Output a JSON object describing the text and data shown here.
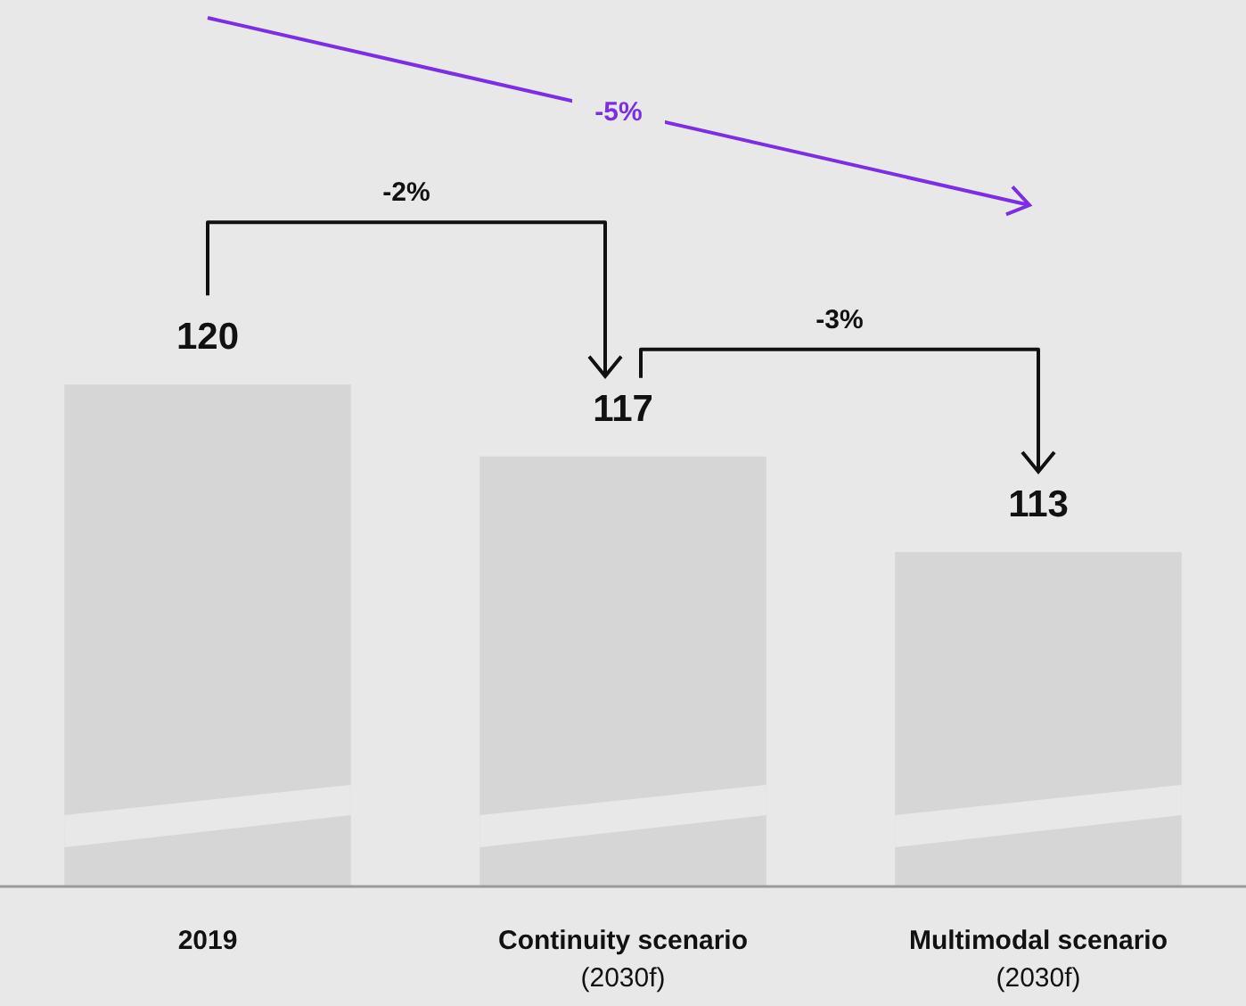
{
  "chart_data": {
    "type": "bar",
    "categories": [
      "2019",
      "Continuity scenario (2030f)",
      "Multimodal scenario (2030f)"
    ],
    "values": [
      120,
      117,
      113
    ],
    "color": "#d6d6d6",
    "data_labels": true,
    "annotations": [
      "-2%",
      "-3%",
      "-5%"
    ]
  }
}
